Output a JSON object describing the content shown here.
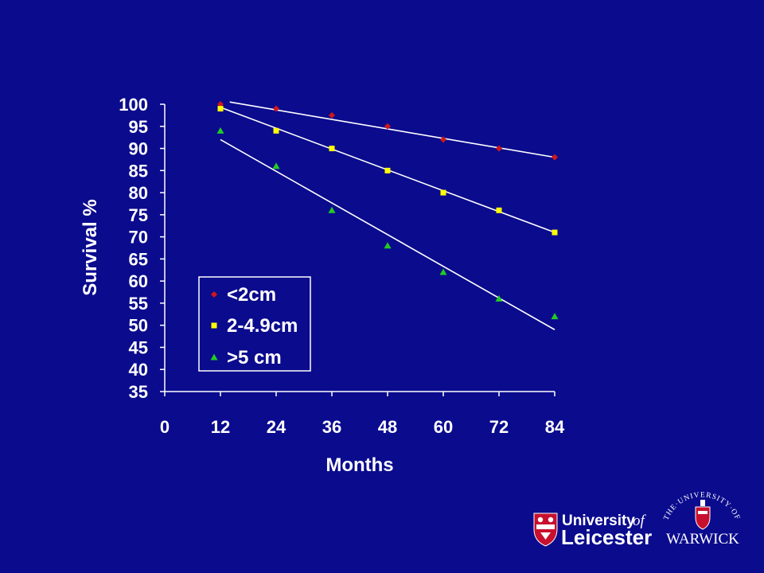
{
  "chart_data": {
    "type": "scatter",
    "xlabel": "Months",
    "ylabel": "Survival %",
    "xlim": [
      0,
      84
    ],
    "ylim": [
      35,
      100
    ],
    "xticks": [
      0,
      12,
      24,
      36,
      48,
      60,
      72,
      84
    ],
    "yticks": [
      35,
      40,
      45,
      50,
      55,
      60,
      65,
      70,
      75,
      80,
      85,
      90,
      95,
      100
    ],
    "grid": false,
    "legend_position": "lower-left",
    "trendlines": true,
    "series": [
      {
        "name": "<2cm",
        "marker": "diamond",
        "color": "#d01818",
        "x": [
          12,
          24,
          36,
          48,
          60,
          72,
          84
        ],
        "y": [
          100,
          99,
          97.5,
          95,
          92,
          90,
          88
        ],
        "trend": [
          [
            14,
            100.5
          ],
          [
            84,
            88
          ]
        ]
      },
      {
        "name": "2-4.9cm",
        "marker": "square",
        "color": "#ffff00",
        "x": [
          12,
          24,
          36,
          48,
          60,
          72,
          84
        ],
        "y": [
          99,
          94,
          90,
          85,
          80,
          76,
          71
        ],
        "trend": [
          [
            12,
            99.3
          ],
          [
            84,
            71
          ]
        ]
      },
      {
        "name": ">5 cm",
        "marker": "triangle",
        "color": "#22cc22",
        "x": [
          12,
          24,
          36,
          48,
          60,
          72,
          84
        ],
        "y": [
          94,
          86,
          76,
          68,
          62,
          56,
          52
        ],
        "trend": [
          [
            12,
            92
          ],
          [
            84,
            49
          ]
        ]
      }
    ]
  },
  "logos": {
    "leicester_line1": "University",
    "leicester_of": "of",
    "leicester_line2": "Leicester",
    "warwick_arc": "THE·UNIVERSITY·OF",
    "warwick_name": "WARWICK"
  },
  "colors": {
    "background": "#0b0b8e",
    "axis": "#ffffff",
    "trendline": "#ffffff",
    "leicester_shield": "#c8102e"
  }
}
